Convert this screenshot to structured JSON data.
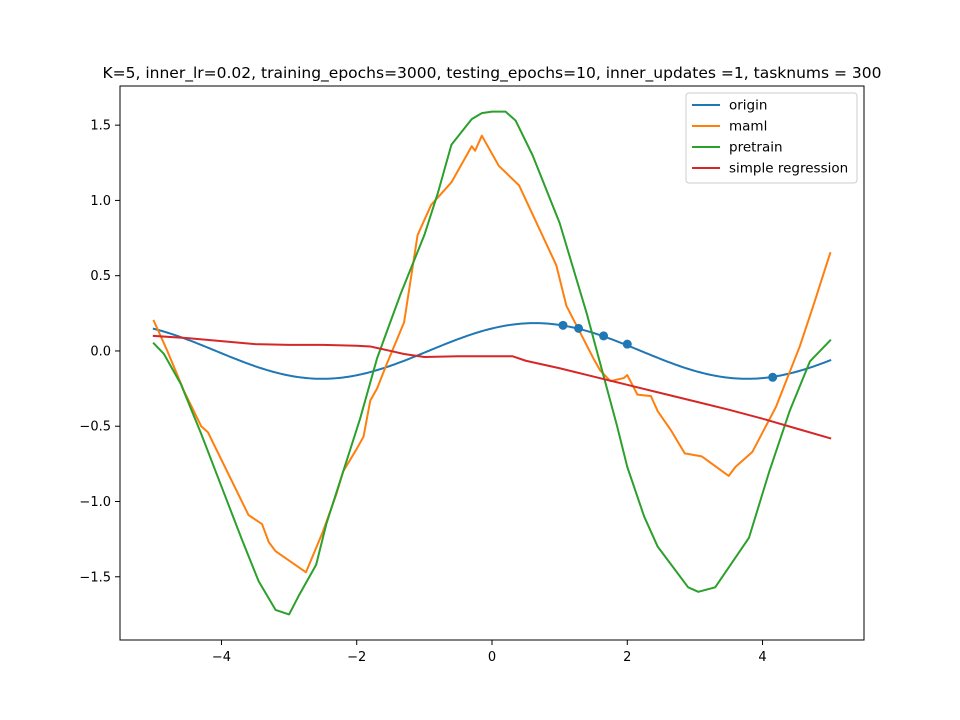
{
  "chart_data": {
    "type": "line",
    "title": "K=5, inner_lr=0.02, training_epochs=3000, testing_epochs=10, inner_updates =1, tasknums = 300",
    "xlabel": "",
    "ylabel": "",
    "xlim": [
      -5.5,
      5.5
    ],
    "ylim": [
      -1.92,
      1.76
    ],
    "xticks": [
      -4,
      -2,
      0,
      2,
      4
    ],
    "yticks": [
      -1.5,
      -1.0,
      -0.5,
      0.0,
      0.5,
      1.0,
      1.5
    ],
    "grid": false,
    "legend_position": "top-right",
    "series": [
      {
        "name": "origin",
        "color": "#1f77b4",
        "function": {
          "amplitude": 0.185,
          "frequency": 1.0,
          "phase": 0.94,
          "x_start": -5,
          "x_end": 5
        }
      },
      {
        "name": "maml",
        "color": "#ff7f0e",
        "x": [
          -5.0,
          -4.8,
          -4.55,
          -4.3,
          -4.2,
          -3.6,
          -3.4,
          -3.3,
          -3.2,
          -2.75,
          -2.5,
          -2.3,
          -2.2,
          -2.0,
          -1.9,
          -1.8,
          -1.7,
          -1.55,
          -1.3,
          -1.1,
          -0.9,
          -0.6,
          -0.3,
          -0.25,
          -0.15,
          0.1,
          0.4,
          0.95,
          1.1,
          1.5,
          1.6,
          1.75,
          1.95,
          2.0,
          2.15,
          2.35,
          2.45,
          2.65,
          2.85,
          3.1,
          3.5,
          3.6,
          3.85,
          4.2,
          4.55,
          4.75,
          5.0
        ],
        "y": [
          0.2,
          0.0,
          -0.27,
          -0.5,
          -0.54,
          -1.09,
          -1.15,
          -1.27,
          -1.33,
          -1.47,
          -1.2,
          -0.95,
          -0.8,
          -0.65,
          -0.57,
          -0.33,
          -0.25,
          -0.08,
          0.19,
          0.77,
          0.97,
          1.12,
          1.36,
          1.33,
          1.43,
          1.23,
          1.1,
          0.57,
          0.3,
          -0.05,
          -0.13,
          -0.2,
          -0.18,
          -0.16,
          -0.29,
          -0.3,
          -0.4,
          -0.53,
          -0.68,
          -0.7,
          -0.83,
          -0.77,
          -0.67,
          -0.37,
          0.03,
          0.3,
          0.65
        ]
      },
      {
        "name": "pretrain",
        "color": "#2ca02c",
        "x": [
          -5.0,
          -4.85,
          -4.6,
          -4.3,
          -4.0,
          -3.7,
          -3.45,
          -3.2,
          -3.0,
          -2.85,
          -2.6,
          -2.45,
          -2.2,
          -1.95,
          -1.7,
          -1.35,
          -1.0,
          -0.8,
          -0.6,
          -0.3,
          -0.15,
          0.0,
          0.2,
          0.35,
          0.6,
          1.0,
          1.4,
          1.85,
          2.0,
          2.25,
          2.45,
          2.7,
          2.9,
          3.05,
          3.3,
          3.8,
          4.1,
          4.4,
          4.7,
          4.85,
          5.0
        ],
        "y": [
          0.05,
          -0.02,
          -0.22,
          -0.55,
          -0.9,
          -1.25,
          -1.53,
          -1.72,
          -1.75,
          -1.62,
          -1.42,
          -1.15,
          -0.8,
          -0.45,
          -0.05,
          0.38,
          0.77,
          1.05,
          1.37,
          1.54,
          1.58,
          1.59,
          1.59,
          1.53,
          1.3,
          0.85,
          0.25,
          -0.5,
          -0.77,
          -1.1,
          -1.3,
          -1.45,
          -1.57,
          -1.6,
          -1.57,
          -1.24,
          -0.8,
          -0.4,
          -0.07,
          0.0,
          0.07
        ]
      },
      {
        "name": "simple regression",
        "color": "#d62728",
        "x": [
          -5.0,
          -4.5,
          -4.0,
          -3.5,
          -3.0,
          -2.5,
          -2.0,
          -1.8,
          -1.5,
          -1.3,
          -1.0,
          -0.5,
          0.0,
          0.3,
          0.5,
          0.8,
          1.0,
          1.5,
          2.0,
          2.5,
          3.0,
          3.5,
          4.0,
          4.5,
          5.0
        ],
        "y": [
          0.1,
          0.085,
          0.065,
          0.045,
          0.04,
          0.04,
          0.035,
          0.03,
          0.0,
          -0.02,
          -0.04,
          -0.035,
          -0.035,
          -0.035,
          -0.065,
          -0.095,
          -0.115,
          -0.17,
          -0.225,
          -0.28,
          -0.335,
          -0.39,
          -0.45,
          -0.515,
          -0.58
        ]
      }
    ],
    "scatter_points": {
      "series": "origin",
      "color": "#1f77b4",
      "x": [
        1.05,
        1.28,
        1.65,
        2.0,
        4.15
      ],
      "y": [
        0.17,
        0.15,
        0.1,
        0.045,
        -0.175
      ]
    }
  }
}
